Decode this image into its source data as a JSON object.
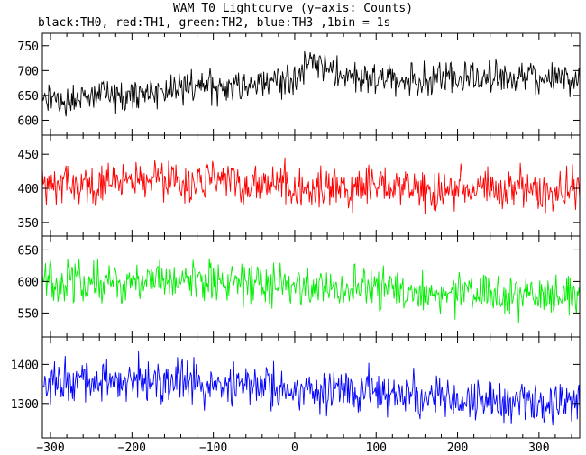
{
  "title": "WAM T0 Lightcurve (y−axis: Counts)",
  "subtitle": "black:TH0, red:TH1, green:TH2, blue:TH3 ,1bin = 1s",
  "chart_data": {
    "type": "line",
    "x_range": [
      -310,
      350
    ],
    "x_ticks": [
      -300,
      -200,
      -100,
      0,
      100,
      200,
      300
    ],
    "bin_seconds": 1,
    "panels": [
      {
        "name": "TH0",
        "color": "#000000",
        "ylim": [
          570,
          775
        ],
        "y_ticks": [
          600,
          650,
          700,
          750
        ],
        "profile_x": [
          -310,
          -250,
          -200,
          -150,
          -100,
          -50,
          -20,
          0,
          10,
          20,
          35,
          50,
          100,
          150,
          200,
          250,
          300,
          350
        ],
        "profile_y": [
          640,
          645,
          655,
          660,
          668,
          675,
          685,
          670,
          705,
          725,
          705,
          690,
          685,
          680,
          682,
          685,
          682,
          682
        ],
        "noise_amplitude": 28
      },
      {
        "name": "TH1",
        "color": "#ff0000",
        "ylim": [
          330,
          478
        ],
        "y_ticks": [
          350,
          400,
          450
        ],
        "profile_x": [
          -310,
          -250,
          -200,
          -100,
          0,
          100,
          200,
          300,
          350
        ],
        "profile_y": [
          405,
          408,
          410,
          408,
          402,
          400,
          398,
          400,
          400
        ],
        "noise_amplitude": 26
      },
      {
        "name": "TH2",
        "color": "#00ee00",
        "ylim": [
          512,
          672
        ],
        "y_ticks": [
          550,
          600,
          650
        ],
        "profile_x": [
          -310,
          -200,
          -100,
          0,
          100,
          200,
          300,
          350
        ],
        "profile_y": [
          600,
          600,
          598,
          592,
          588,
          582,
          578,
          575
        ],
        "noise_amplitude": 28
      },
      {
        "name": "TH3",
        "color": "#0000ff",
        "ylim": [
          1212,
          1470
        ],
        "y_ticks": [
          1300,
          1400
        ],
        "profile_x": [
          -310,
          -250,
          -200,
          -100,
          0,
          100,
          200,
          300,
          350
        ],
        "profile_y": [
          1345,
          1365,
          1360,
          1350,
          1340,
          1330,
          1315,
          1305,
          1300
        ],
        "noise_amplitude": 48
      }
    ]
  }
}
